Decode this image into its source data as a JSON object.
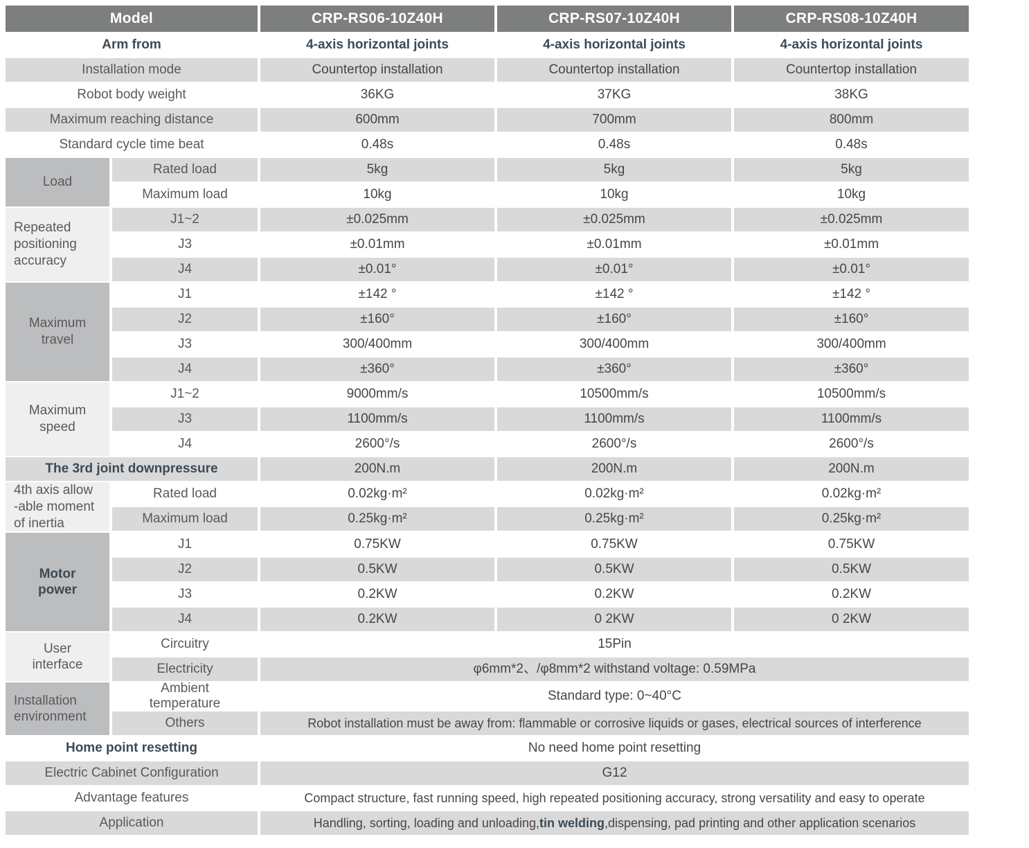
{
  "colors": {
    "header_bg": "#7d7e7e",
    "header_text": "#ffffff",
    "row_gray": "#d9d9da",
    "group_dark": "#bcbdbe",
    "group_light": "#efefef",
    "label_text": "#58595b",
    "value_text": "#4b4442",
    "emphasis_text": "#3d4a54"
  },
  "header": {
    "label": "Model",
    "models": [
      "CRP-RS06-10Z40H",
      "CRP-RS07-10Z40H",
      "CRP-RS08-10Z40H"
    ]
  },
  "rows": {
    "arm_from": {
      "label": "Arm from",
      "v": [
        "4-axis horizontal joints",
        "4-axis horizontal joints",
        "4-axis horizontal joints"
      ]
    },
    "installation_mode": {
      "label": "Installation mode",
      "v": [
        "Countertop installation",
        "Countertop installation",
        "Countertop installation"
      ]
    },
    "body_weight": {
      "label": "Robot body weight",
      "v": [
        "36KG",
        "37KG",
        "38KG"
      ]
    },
    "reach": {
      "label": "Maximum reaching distance",
      "v": [
        "600mm",
        "700mm",
        "800mm"
      ]
    },
    "cycle": {
      "label": "Standard cycle time beat",
      "v": [
        "0.48s",
        "0.48s",
        "0.48s"
      ]
    },
    "downpressure": {
      "label": "The 3rd joint downpressure",
      "v": [
        "200N.m",
        "200N.m",
        "200N.m"
      ]
    }
  },
  "groups": {
    "load": {
      "label": "Load",
      "rows": {
        "rated": {
          "label": "Rated load",
          "v": [
            "5kg",
            "5kg",
            "5kg"
          ]
        },
        "max": {
          "label": "Maximum load",
          "v": [
            "10kg",
            "10kg",
            "10kg"
          ]
        }
      }
    },
    "accuracy": {
      "label": "Repeated\npositioning\naccuracy",
      "rows": {
        "j12": {
          "label": "J1~2",
          "v": [
            "±0.025mm",
            "±0.025mm",
            "±0.025mm"
          ]
        },
        "j3": {
          "label": "J3",
          "v": [
            "±0.01mm",
            "±0.01mm",
            "±0.01mm"
          ]
        },
        "j4": {
          "label": "J4",
          "v": [
            "±0.01°",
            "±0.01°",
            "±0.01°"
          ]
        }
      }
    },
    "travel": {
      "label": "Maximum\ntravel",
      "rows": {
        "j1": {
          "label": "J1",
          "v": [
            "±142 °",
            "±142 °",
            "±142 °"
          ]
        },
        "j2": {
          "label": "J2",
          "v": [
            "±160°",
            "±160°",
            "±160°"
          ]
        },
        "j3": {
          "label": "J3",
          "v": [
            "300/400mm",
            "300/400mm",
            "300/400mm"
          ]
        },
        "j4": {
          "label": "J4",
          "v": [
            "±360°",
            "±360°",
            "±360°"
          ]
        }
      }
    },
    "speed": {
      "label": "Maximum\nspeed",
      "rows": {
        "j12": {
          "label": "J1~2",
          "v": [
            "9000mm/s",
            "10500mm/s",
            "10500mm/s"
          ]
        },
        "j3": {
          "label": "J3",
          "v": [
            "1100mm/s",
            "1100mm/s",
            "1100mm/s"
          ]
        },
        "j4": {
          "label": "J4",
          "v": [
            "2600°/s",
            "2600°/s",
            "2600°/s"
          ]
        }
      }
    },
    "inertia": {
      "label": "4th axis allow\n-able moment\nof inertia",
      "rows": {
        "rated": {
          "label": "Rated load",
          "v": [
            "0.02kg·m²",
            "0.02kg·m²",
            "0.02kg·m²"
          ]
        },
        "max": {
          "label": "Maximum load",
          "v": [
            "0.25kg·m²",
            "0.25kg·m²",
            "0.25kg·m²"
          ]
        }
      }
    },
    "motor": {
      "label": "Motor\npower",
      "rows": {
        "j1": {
          "label": "J1",
          "v": [
            "0.75KW",
            "0.75KW",
            "0.75KW"
          ]
        },
        "j2": {
          "label": "J2",
          "v": [
            "0.5KW",
            "0.5KW",
            "0.5KW"
          ]
        },
        "j3": {
          "label": "J3",
          "v": [
            "0.2KW",
            "0.2KW",
            "0.2KW"
          ]
        },
        "j4": {
          "label": "J4",
          "v": [
            "0.2KW",
            "0 2KW",
            "0 2KW"
          ]
        }
      }
    },
    "user_interface": {
      "label": "User\ninterface",
      "rows": {
        "circuitry": {
          "label": "Circuitry",
          "span": "15Pin"
        },
        "electricity": {
          "label": "Electricity",
          "span": "φ6mm*2、/φ8mm*2  withstand voltage: 0.59MPa"
        }
      }
    },
    "environment": {
      "label": "Installation\nenvironment",
      "rows": {
        "ambient": {
          "label": "Ambient\ntemperature",
          "span": "Standard type:  0~40°C"
        },
        "others": {
          "label": "Others",
          "span": "Robot installation must be away from: flammable or corrosive liquids or gases, electrical sources of interference"
        }
      }
    }
  },
  "footer": {
    "home": {
      "label": "Home point resetting",
      "span": "No need home point resetting"
    },
    "cabinet": {
      "label": "Electric Cabinet Configuration",
      "span": "G12"
    },
    "advantage": {
      "label": "Advantage features",
      "span": "Compact structure, fast running speed, high repeated positioning accuracy, strong versatility and easy to operate"
    },
    "application": {
      "label": "Application",
      "pre": "Handling, sorting, loading and unloading,",
      "bold": "tin welding",
      "post": ",dispensing, pad printing and other application scenarios"
    }
  }
}
